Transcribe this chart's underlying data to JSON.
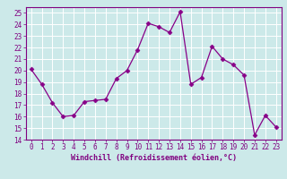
{
  "x_vals": [
    0,
    1,
    2,
    3,
    4,
    5,
    6,
    7,
    8,
    9,
    10,
    11,
    12,
    13,
    14,
    15,
    16,
    17,
    18,
    19,
    20,
    21,
    22,
    23
  ],
  "y_vals": [
    20.1,
    18.8,
    17.2,
    16.0,
    16.1,
    17.3,
    17.4,
    17.5,
    19.3,
    20.0,
    21.8,
    24.1,
    23.8,
    23.3,
    25.1,
    18.8,
    19.4,
    22.1,
    21.0,
    20.5,
    19.6,
    14.4,
    16.1,
    15.1
  ],
  "line_color": "#880088",
  "marker": "D",
  "marker_size": 2.5,
  "xlabel": "Windchill (Refroidissement éolien,°C)",
  "xlim": [
    -0.5,
    23.5
  ],
  "ylim": [
    14,
    25.5
  ],
  "yticks": [
    14,
    15,
    16,
    17,
    18,
    19,
    20,
    21,
    22,
    23,
    24,
    25
  ],
  "xticks": [
    0,
    1,
    2,
    3,
    4,
    5,
    6,
    7,
    8,
    9,
    10,
    11,
    12,
    13,
    14,
    15,
    16,
    17,
    18,
    19,
    20,
    21,
    22,
    23
  ],
  "bg_color": "#cce9e9",
  "grid_color": "#ffffff",
  "spine_color": "#800080",
  "tick_color": "#800080",
  "label_color": "#800080",
  "tick_fontsize": 5.5,
  "xlabel_fontsize": 6.0
}
